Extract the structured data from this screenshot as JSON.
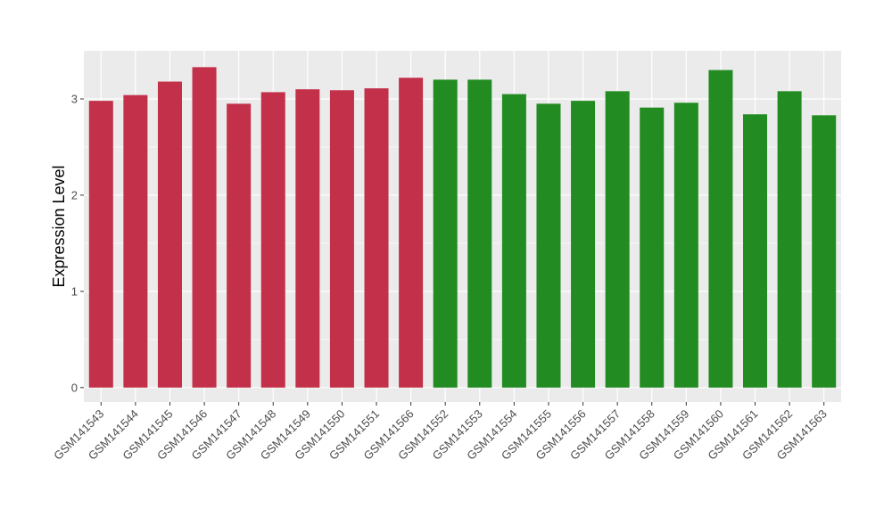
{
  "chart_data": {
    "type": "bar",
    "ylabel": "Expression Level",
    "xlabel": "",
    "ylim": [
      -0.15,
      3.5
    ],
    "yticks": [
      0,
      1,
      2,
      3
    ],
    "grid": true,
    "legend": "none",
    "colors": {
      "group_a": "#c3304a",
      "group_b": "#228b22",
      "panel": "#ebebeb",
      "grid": "#ffffff"
    },
    "categories": [
      "GSM141543",
      "GSM141544",
      "GSM141545",
      "GSM141546",
      "GSM141547",
      "GSM141548",
      "GSM141549",
      "GSM141550",
      "GSM141551",
      "GSM141566",
      "GSM141552",
      "GSM141553",
      "GSM141554",
      "GSM141555",
      "GSM141556",
      "GSM141557",
      "GSM141558",
      "GSM141559",
      "GSM141560",
      "GSM141561",
      "GSM141562",
      "GSM141563"
    ],
    "values": [
      2.98,
      3.04,
      3.18,
      3.33,
      2.95,
      3.07,
      3.1,
      3.09,
      3.11,
      3.22,
      3.2,
      3.2,
      3.05,
      2.95,
      2.98,
      3.08,
      2.91,
      2.96,
      3.3,
      2.84,
      3.08,
      2.83
    ],
    "groups": [
      "a",
      "a",
      "a",
      "a",
      "a",
      "a",
      "a",
      "a",
      "a",
      "a",
      "b",
      "b",
      "b",
      "b",
      "b",
      "b",
      "b",
      "b",
      "b",
      "b",
      "b",
      "b"
    ]
  }
}
